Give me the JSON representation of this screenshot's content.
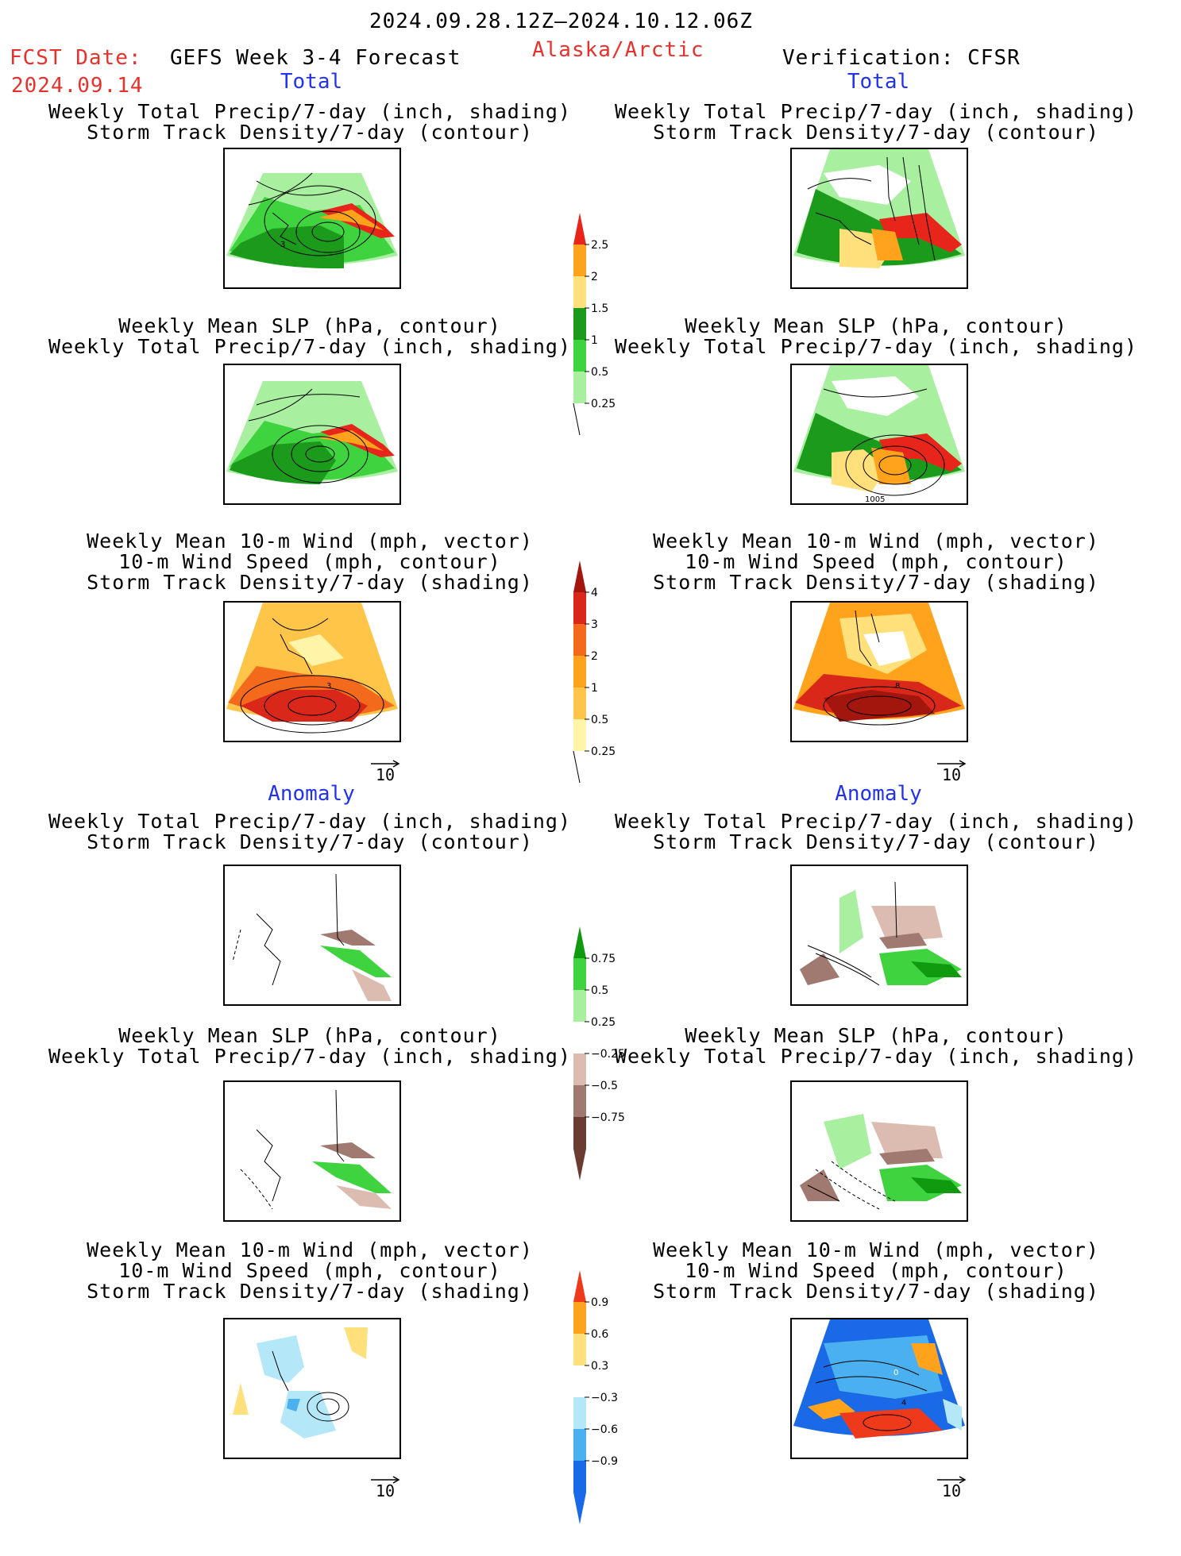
{
  "header": {
    "date_range": "2024.09.28.12Z–2024.10.12.06Z",
    "fcst_label": "FCST Date:",
    "fcst_date": "2024.09.14",
    "product": "GEFS Week 3-4 Forecast",
    "region": "Alaska/Arctic",
    "verification": "Verification: CFSR"
  },
  "sections": {
    "total_left": "Total",
    "total_right": "Total",
    "anomaly_left": "Anomaly",
    "anomaly_right": "Anomaly"
  },
  "panels": {
    "precip_storm": [
      "Weekly Total Precip/7-day (inch, shading)",
      "Storm Track Density/7-day (contour)"
    ],
    "slp_precip": [
      "Weekly Mean SLP (hPa, contour)",
      "Weekly Total Precip/7-day (inch, shading)"
    ],
    "wind_storm": [
      "Weekly Mean 10-m Wind (mph, vector)",
      "10-m Wind Speed (mph, contour)",
      "Storm Track Density/7-day (shading)"
    ]
  },
  "map_labels": {
    "total_storm_left": "3",
    "total_slp_right": "1005",
    "total_wind_left": "3",
    "total_wind_right": "8",
    "anom_wind_right_a": "0",
    "anom_wind_right_b": "4"
  },
  "vector_reference": "10",
  "colorbars": {
    "precip_total": {
      "labels": [
        "2.5",
        "2",
        "1.5",
        "1",
        "0.5",
        "0.25"
      ],
      "colors": [
        "#e8251b",
        "#ffa21c",
        "#ffe07a",
        "#1c9a1c",
        "#3fd43f",
        "#a8f0a0"
      ]
    },
    "storm_total": {
      "labels": [
        "4",
        "3",
        "2",
        "1",
        "0.5",
        "0.25"
      ],
      "colors": [
        "#a3160e",
        "#d9281a",
        "#f36a1c",
        "#ffa21c",
        "#ffc548",
        "#fff4a8"
      ]
    },
    "precip_anom": {
      "labels": [
        "0.75",
        "0.5",
        "0.25",
        "−0.25",
        "−0.5",
        "−0.75"
      ],
      "colors": [
        "#109a10",
        "#3fd43f",
        "#a8f0a0",
        "#ffffff",
        "#dcbcb0",
        "#a07a70",
        "#6a3c32"
      ]
    },
    "storm_anom": {
      "labels": [
        "0.9",
        "0.6",
        "0.3",
        "−0.3",
        "−0.6",
        "−0.9"
      ],
      "colors": [
        "#ee3a1a",
        "#ffa21c",
        "#ffe07a",
        "#ffffff",
        "#b4e8f8",
        "#4ab0f0",
        "#1a6ae8"
      ]
    }
  }
}
